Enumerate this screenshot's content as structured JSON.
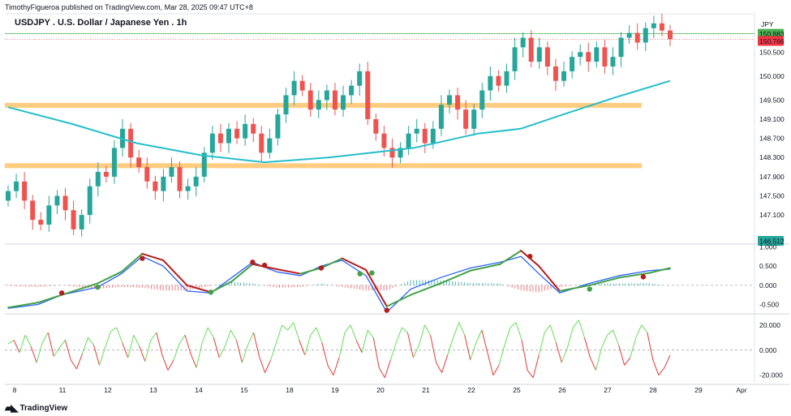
{
  "caption": "TimothyFigueroa published on TradingView.com, Mar 28, 2025 09:47 UTC+8",
  "title": "USDJPY . U.S. Dollar / Japanese Yen . 1h",
  "currency": "JPY",
  "branding": "TradingView",
  "colors": {
    "up": "#26a69a",
    "down": "#ef5350",
    "ema": "#26bec9",
    "zone": "#ffcc80",
    "macd": "#2962ff",
    "signal_up": "#43a047",
    "signal_down": "#b71c1c",
    "rsi_up": "#66dd55",
    "rsi_down": "#e53935",
    "price_line": "#4caf50",
    "last_price_bg": "#f23645"
  },
  "chart_data": [
    {
      "type": "candlestick",
      "pane": "price",
      "x_ticks": [
        "8",
        "11",
        "12",
        "13",
        "14",
        "15",
        "18",
        "19",
        "20",
        "21",
        "22",
        "25",
        "26",
        "27",
        "28",
        "29",
        "Apr"
      ],
      "y_ticks": [
        "150.500",
        "150.000",
        "149.500",
        "149.100",
        "148.700",
        "148.300",
        "147.900",
        "147.500",
        "147.100"
      ],
      "ylim": [
        146.51,
        151.3
      ],
      "price_labels": {
        "green": "150.883",
        "red": "150.766",
        "low": "146.512"
      },
      "price_line": 150.883,
      "last_price": 150.766,
      "support_zones": [
        [
          149.35,
          149.44
        ],
        [
          148.1,
          148.18
        ]
      ],
      "ema_path": [
        [
          0,
          149.35
        ],
        [
          15,
          149.0
        ],
        [
          30,
          148.6
        ],
        [
          45,
          148.35
        ],
        [
          60,
          148.2
        ],
        [
          75,
          148.3
        ],
        [
          85,
          148.4
        ],
        [
          95,
          148.5
        ],
        [
          110,
          148.8
        ],
        [
          120,
          148.9
        ],
        [
          130,
          149.2
        ],
        [
          142,
          149.55
        ],
        [
          155,
          149.9
        ]
      ],
      "closes": [
        147.6,
        147.8,
        147.4,
        147.0,
        146.9,
        147.3,
        147.5,
        147.2,
        146.8,
        147.1,
        147.7,
        148.0,
        147.9,
        148.5,
        148.9,
        148.3,
        148.1,
        147.8,
        147.6,
        147.9,
        148.1,
        147.6,
        147.7,
        147.9,
        148.4,
        148.8,
        148.6,
        148.9,
        148.7,
        149.0,
        148.8,
        148.4,
        148.7,
        149.2,
        149.6,
        149.9,
        149.7,
        149.3,
        149.5,
        149.7,
        149.3,
        149.6,
        149.8,
        150.1,
        149.1,
        148.8,
        148.5,
        148.3,
        148.5,
        148.8,
        148.9,
        148.6,
        148.9,
        149.4,
        149.6,
        149.3,
        148.9,
        149.3,
        149.7,
        150.0,
        149.8,
        150.1,
        150.6,
        150.8,
        150.3,
        150.6,
        150.2,
        149.9,
        150.1,
        150.4,
        150.5,
        150.3,
        150.6,
        150.2,
        150.4,
        150.8,
        150.9,
        150.7,
        151.0,
        151.1,
        150.95,
        150.77
      ],
      "name": ""
    },
    {
      "type": "line",
      "pane": "macd",
      "y_ticks": [
        "1.000",
        "0.500",
        "0.000",
        "-0.500"
      ],
      "ylim": [
        -0.7,
        1.05
      ],
      "macd": [
        [
          0,
          -0.6
        ],
        [
          10,
          -0.5
        ],
        [
          18,
          -0.25
        ],
        [
          30,
          -0.05
        ],
        [
          38,
          0.3
        ],
        [
          45,
          0.75
        ],
        [
          52,
          0.5
        ],
        [
          60,
          -0.15
        ],
        [
          68,
          -0.2
        ],
        [
          75,
          0.2
        ],
        [
          82,
          0.6
        ],
        [
          90,
          0.35
        ],
        [
          98,
          0.25
        ],
        [
          105,
          0.5
        ],
        [
          112,
          0.65
        ],
        [
          120,
          0.25
        ],
        [
          127,
          -0.7
        ],
        [
          135,
          -0.1
        ],
        [
          145,
          0.2
        ],
        [
          155,
          0.45
        ],
        [
          165,
          0.6
        ],
        [
          172,
          0.75
        ],
        [
          178,
          0.3
        ],
        [
          185,
          -0.2
        ],
        [
          195,
          0.05
        ],
        [
          205,
          0.25
        ],
        [
          215,
          0.38
        ],
        [
          222,
          0.42
        ]
      ],
      "signal": [
        [
          0,
          -0.58
        ],
        [
          10,
          -0.45
        ],
        [
          18,
          -0.25
        ],
        [
          30,
          0.05
        ],
        [
          38,
          0.35
        ],
        [
          45,
          0.82
        ],
        [
          52,
          0.65
        ],
        [
          60,
          0.0
        ],
        [
          68,
          -0.18
        ],
        [
          75,
          0.1
        ],
        [
          82,
          0.55
        ],
        [
          90,
          0.42
        ],
        [
          98,
          0.3
        ],
        [
          105,
          0.45
        ],
        [
          112,
          0.7
        ],
        [
          120,
          0.4
        ],
        [
          127,
          -0.55
        ],
        [
          135,
          -0.25
        ],
        [
          145,
          0.05
        ],
        [
          155,
          0.38
        ],
        [
          165,
          0.55
        ],
        [
          172,
          0.9
        ],
        [
          178,
          0.5
        ],
        [
          185,
          -0.15
        ],
        [
          195,
          0.0
        ],
        [
          205,
          0.2
        ],
        [
          215,
          0.32
        ],
        [
          222,
          0.45
        ]
      ],
      "crosses": [
        [
          18,
          -0.2,
          "down"
        ],
        [
          30,
          -0.05,
          "up"
        ],
        [
          45,
          0.7,
          "down"
        ],
        [
          68,
          -0.18,
          "up"
        ],
        [
          82,
          0.6,
          "down"
        ],
        [
          86,
          0.52,
          "down"
        ],
        [
          105,
          0.45,
          "down"
        ],
        [
          118,
          0.3,
          "up"
        ],
        [
          122,
          0.32,
          "up"
        ],
        [
          127,
          -0.65,
          "down"
        ],
        [
          175,
          0.75,
          "down"
        ],
        [
          195,
          -0.1,
          "up"
        ],
        [
          213,
          0.22,
          "down"
        ]
      ],
      "name": ""
    },
    {
      "type": "line",
      "pane": "oscillator",
      "y_ticks": [
        "20.000",
        "0.000",
        "-20.000"
      ],
      "ylim": [
        -26,
        27
      ],
      "values": [
        5,
        8,
        -2,
        12,
        3,
        -10,
        6,
        14,
        -5,
        2,
        8,
        -8,
        -15,
        -3,
        10,
        4,
        -12,
        2,
        15,
        18,
        6,
        -6,
        12,
        3,
        -9,
        8,
        14,
        -4,
        -16,
        -8,
        5,
        12,
        -3,
        -14,
        6,
        18,
        10,
        -6,
        3,
        16,
        8,
        -10,
        4,
        14,
        -5,
        -18,
        -8,
        6,
        20,
        16,
        22,
        8,
        -4,
        12,
        18,
        6,
        -12,
        -20,
        -6,
        14,
        20,
        8,
        -2,
        16,
        10,
        -14,
        -22,
        -8,
        6,
        18,
        14,
        -6,
        4,
        20,
        12,
        -10,
        -18,
        -4,
        10,
        22,
        12,
        -8,
        6,
        16,
        -2,
        -20,
        -12,
        4,
        18,
        22,
        8,
        -16,
        -22,
        -4,
        14,
        20,
        6,
        -10,
        2,
        18,
        24,
        10,
        -6,
        -16,
        2,
        12,
        16,
        4,
        -12,
        -6,
        10,
        20,
        14,
        -8,
        -20,
        -14,
        -4
      ],
      "name": ""
    }
  ]
}
